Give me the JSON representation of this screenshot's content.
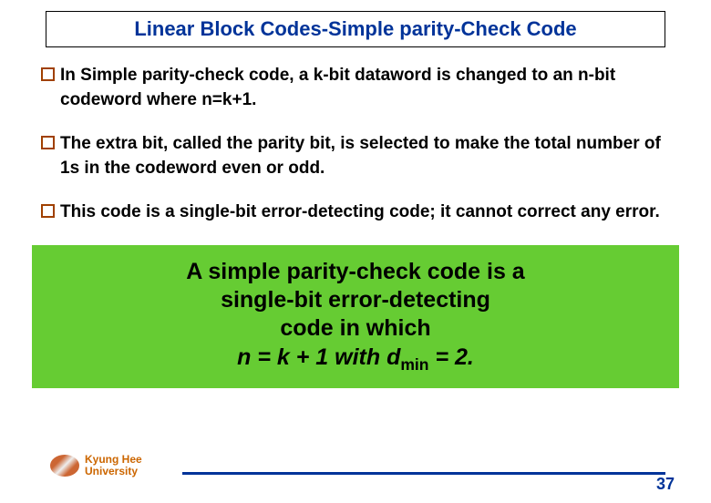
{
  "title": "Linear Block Codes-Simple parity-Check Code",
  "bullets": [
    "In Simple parity-check code, a k-bit dataword is changed to an n-bit codeword where n=k+1.",
    "The extra bit, called the parity bit, is selected to make the total number of 1s in the codeword even or odd.",
    "This code is a single-bit error-detecting code; it cannot correct any error."
  ],
  "highlight": {
    "line1": "A simple parity-check code is a",
    "line2": "single-bit error-detecting",
    "line3": "code in which",
    "line4_prefix": "n = k + 1 with ",
    "line4_var": "d",
    "line4_sub": "min",
    "line4_suffix": " = 2."
  },
  "footer": {
    "uni1": "Kyung Hee",
    "uni2": "University",
    "page": "37"
  },
  "colors": {
    "title_color": "#003399",
    "bullet_border": "#a04000",
    "highlight_bg": "#66cc33",
    "footer_line": "#003399",
    "uni_color": "#cc6600"
  }
}
